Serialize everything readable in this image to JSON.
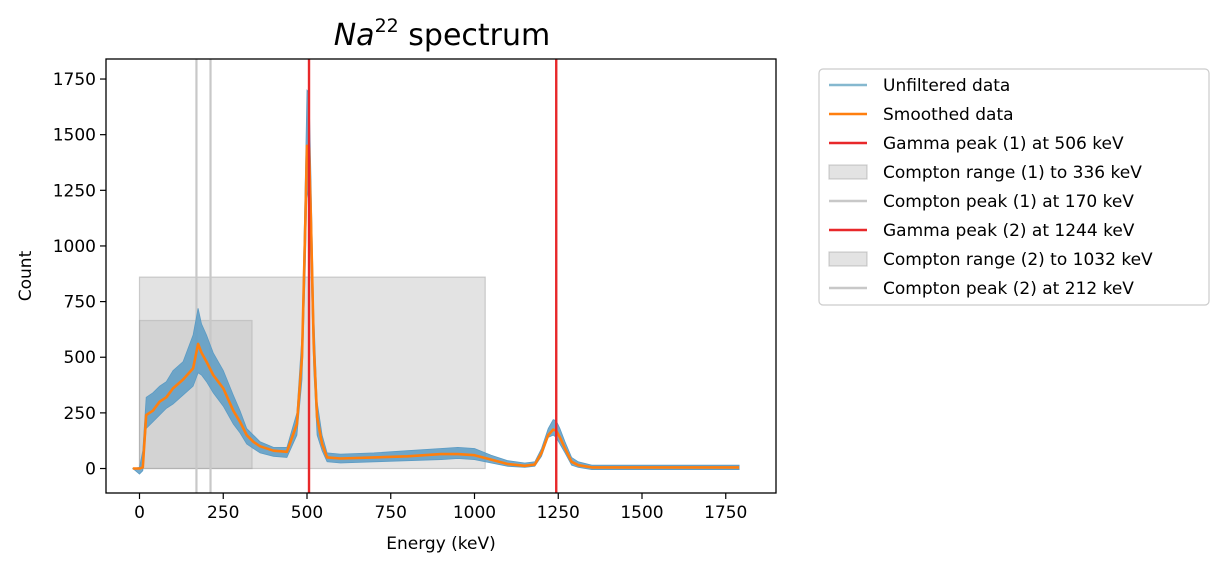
{
  "chart_data": {
    "type": "line",
    "title_base": "Na",
    "title_sup": "22",
    "title_rest": " spectrum",
    "xlabel": "Energy (keV)",
    "ylabel": "Count",
    "xlim": [
      -100,
      1900
    ],
    "ylim": [
      -110,
      1840
    ],
    "x_ticks": [
      0,
      250,
      500,
      750,
      1000,
      1250,
      1500,
      1750
    ],
    "y_ticks": [
      0,
      250,
      500,
      750,
      1000,
      1250,
      1500,
      1750
    ],
    "grid": false,
    "legend_position": "outside-right",
    "colors": {
      "unfiltered": "#5b9bc4",
      "unfiltered_legend": "#85b8cf",
      "smoothed": "#ff7f0e",
      "gamma": "#e8282a",
      "compton_fill": "#bdbdbd",
      "compton_line": "#c8c8c8"
    },
    "series": [
      {
        "name": "Unfiltered data",
        "envelope_x": [
          -20,
          0,
          10,
          20,
          40,
          60,
          80,
          100,
          130,
          160,
          175,
          185,
          200,
          220,
          250,
          280,
          300,
          320,
          340,
          360,
          400,
          440,
          470,
          485,
          495,
          500,
          506,
          512,
          520,
          530,
          545,
          560,
          600,
          700,
          800,
          900,
          950,
          1000,
          1050,
          1100,
          1150,
          1180,
          1200,
          1220,
          1235,
          1244,
          1255,
          1270,
          1290,
          1310,
          1350,
          1500,
          1650,
          1790
        ],
        "envelope_upper": [
          0,
          5,
          80,
          320,
          340,
          370,
          390,
          440,
          480,
          600,
          720,
          650,
          600,
          520,
          440,
          330,
          260,
          180,
          150,
          120,
          95,
          95,
          250,
          600,
          1300,
          1700,
          1690,
          1300,
          700,
          300,
          150,
          70,
          65,
          70,
          80,
          90,
          95,
          90,
          60,
          35,
          25,
          30,
          90,
          180,
          220,
          215,
          180,
          120,
          50,
          30,
          15,
          15,
          15,
          15
        ],
        "envelope_lower": [
          0,
          -25,
          -10,
          180,
          210,
          240,
          270,
          290,
          330,
          370,
          430,
          420,
          390,
          340,
          280,
          200,
          160,
          110,
          90,
          70,
          55,
          50,
          150,
          400,
          900,
          1250,
          1200,
          900,
          450,
          150,
          80,
          30,
          25,
          30,
          35,
          40,
          45,
          40,
          25,
          10,
          5,
          10,
          55,
          140,
          150,
          140,
          110,
          70,
          15,
          5,
          -5,
          -5,
          -5,
          -5
        ]
      },
      {
        "name": "Smoothed data",
        "x": [
          -20,
          0,
          10,
          20,
          40,
          60,
          80,
          100,
          130,
          160,
          175,
          185,
          200,
          220,
          250,
          280,
          300,
          320,
          340,
          360,
          400,
          440,
          470,
          485,
          495,
          500,
          506,
          512,
          520,
          530,
          545,
          560,
          600,
          700,
          800,
          900,
          950,
          1000,
          1050,
          1100,
          1150,
          1180,
          1200,
          1220,
          1235,
          1244,
          1255,
          1270,
          1290,
          1310,
          1350,
          1500,
          1650,
          1790
        ],
        "y": [
          0,
          0,
          5,
          240,
          260,
          300,
          320,
          360,
          400,
          450,
          560,
          520,
          480,
          420,
          360,
          260,
          210,
          150,
          120,
          100,
          80,
          75,
          200,
          500,
          1100,
          1450,
          1440,
          1100,
          560,
          230,
          110,
          50,
          45,
          50,
          55,
          65,
          65,
          60,
          40,
          20,
          12,
          18,
          70,
          150,
          175,
          170,
          140,
          90,
          30,
          15,
          5,
          5,
          5,
          5
        ]
      }
    ],
    "gamma_peaks": [
      {
        "name": "Gamma peak (1) at 506 keV",
        "x": 506
      },
      {
        "name": "Gamma peak (2) at 1244 keV",
        "x": 1244
      }
    ],
    "compton_ranges": [
      {
        "name": "Compton range (1) to 336 keV",
        "x0": 0,
        "x1": 336,
        "height": 665
      },
      {
        "name": "Compton range (2) to 1032 keV",
        "x0": 0,
        "x1": 1032,
        "height": 860
      }
    ],
    "compton_peaks": [
      {
        "name": "Compton peak (1) at 170 keV",
        "x": 170
      },
      {
        "name": "Compton peak (2) at 212 keV",
        "x": 212
      }
    ],
    "legend": [
      {
        "label": "Unfiltered data",
        "kind": "line",
        "color_key": "unfiltered_legend"
      },
      {
        "label": "Smoothed data",
        "kind": "line",
        "color_key": "smoothed"
      },
      {
        "label": "Gamma peak (1) at 506 keV",
        "kind": "line",
        "color_key": "gamma"
      },
      {
        "label": "Compton range (1) to 336 keV",
        "kind": "patch",
        "color_key": "compton_fill"
      },
      {
        "label": "Compton peak (1) at 170 keV",
        "kind": "line",
        "color_key": "compton_line"
      },
      {
        "label": "Gamma peak (2) at 1244 keV",
        "kind": "line",
        "color_key": "gamma"
      },
      {
        "label": "Compton range (2) to 1032 keV",
        "kind": "patch",
        "color_key": "compton_fill"
      },
      {
        "label": "Compton peak (2) at 212 keV",
        "kind": "line",
        "color_key": "compton_line"
      }
    ]
  }
}
